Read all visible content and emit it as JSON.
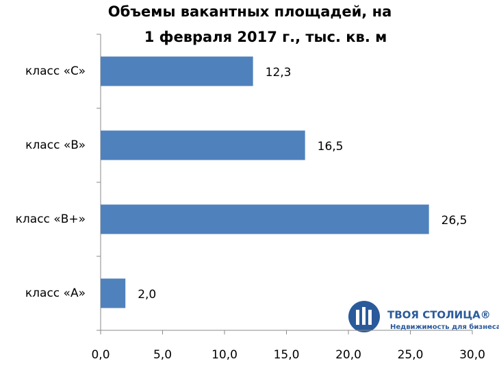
{
  "chart_data": {
    "type": "hbar",
    "title": [
      "Объемы вакантных площадей, на",
      "1 февраля 2017 г., тыс. кв. м"
    ],
    "categories": [
      "класс «C»",
      "класс «B»",
      "класс «B+»",
      "класс «A»"
    ],
    "values": [
      12.3,
      16.5,
      26.5,
      2.0
    ],
    "value_labels": [
      "12,3",
      "16,5",
      "26,5",
      "2,0"
    ],
    "color": "#4f81bd",
    "xlim": [
      0,
      30
    ],
    "xticks": [
      {
        "value": 0,
        "label": "0,0"
      },
      {
        "value": 5,
        "label": "5,0"
      },
      {
        "value": 10,
        "label": "10,0"
      },
      {
        "value": 15,
        "label": "15,0"
      },
      {
        "value": 20,
        "label": "20,0"
      },
      {
        "value": 25,
        "label": "25,0"
      },
      {
        "value": 30,
        "label": "30,0"
      }
    ],
    "grid": false
  },
  "logo": {
    "name": "ТВОЯ СТОЛИЦА®",
    "tagline": "Недвижимость для бизнеса"
  }
}
